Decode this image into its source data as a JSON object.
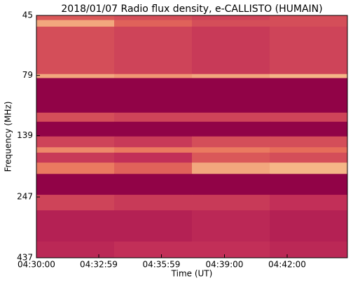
{
  "chart_data": {
    "type": "spectrogram",
    "title": "2018/01/07  Radio flux density, e-CALLISTO (HUMAIN)",
    "xlabel": "Time (UT)",
    "ylabel": "Frequency (MHz)",
    "xlim": [
      "04:30:00",
      "04:44:53"
    ],
    "xticks": [
      "04:30:00",
      "04:32:59",
      "04:35:59",
      "04:39:00",
      "04:42:00"
    ],
    "ylim": [
      45,
      437
    ],
    "yscale": "log",
    "yinvert": true,
    "yticks": [
      45,
      79,
      139,
      247,
      437
    ],
    "y_edges": [
      45,
      47,
      50,
      78,
      81,
      112,
      122,
      140,
      155,
      163,
      179,
      199,
      242,
      280,
      375,
      437
    ],
    "z": [
      [
        0.55,
        0.5,
        0.45,
        0.5
      ],
      [
        0.85,
        0.6,
        0.5,
        0.5
      ],
      [
        0.5,
        0.45,
        0.4,
        0.45
      ],
      [
        0.85,
        0.8,
        0.85,
        0.9
      ],
      [
        0.02,
        0.02,
        0.02,
        0.02
      ],
      [
        0.5,
        0.45,
        0.45,
        0.45
      ],
      [
        0.02,
        0.02,
        0.02,
        0.02
      ],
      [
        0.45,
        0.4,
        0.5,
        0.5
      ],
      [
        0.75,
        0.7,
        0.7,
        0.65
      ],
      [
        0.4,
        0.35,
        0.55,
        0.5
      ],
      [
        0.7,
        0.6,
        0.85,
        0.9
      ],
      [
        0.02,
        0.02,
        0.02,
        0.02
      ],
      [
        0.45,
        0.4,
        0.4,
        0.35
      ],
      [
        0.25,
        0.25,
        0.3,
        0.25
      ],
      [
        0.3,
        0.35,
        0.35,
        0.3
      ]
    ],
    "colormap": [
      "#8e0046",
      "#c02c58",
      "#e8705a",
      "#fbd49a"
    ]
  }
}
